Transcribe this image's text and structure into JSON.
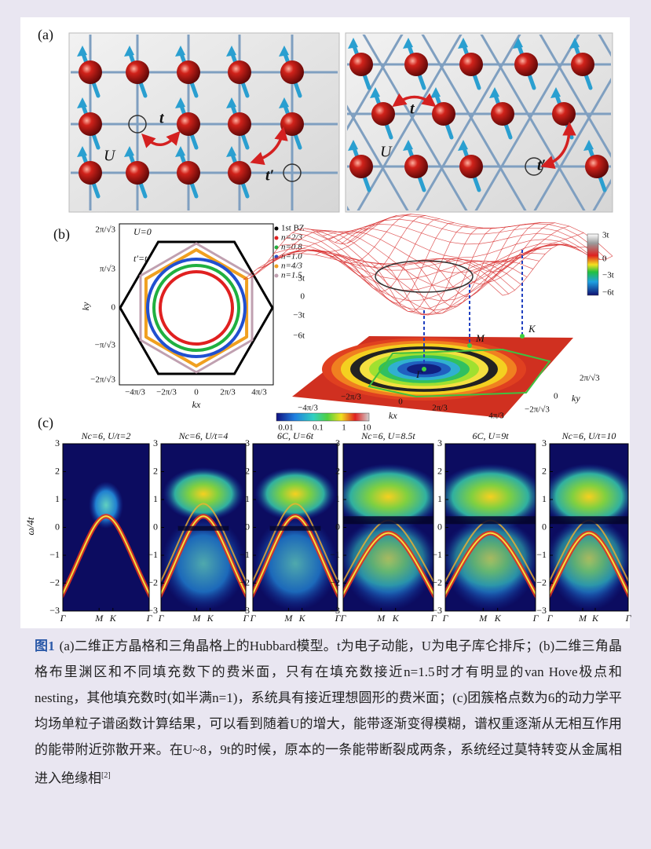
{
  "figure": {
    "panel_a": {
      "label": "(a)",
      "square": {
        "hopping": "t",
        "interaction": "U",
        "next_hopping": "t′"
      },
      "triangular": {
        "hopping": "t",
        "interaction": "U",
        "next_hopping": "t′"
      }
    },
    "panel_b": {
      "label": "(b)",
      "fermi": {
        "notes": [
          "U=0",
          "t′=t"
        ],
        "legend": [
          "1st BZ",
          "n=2/3",
          "n=0.8",
          "n=1.0",
          "n=4/3",
          "n=1.5"
        ],
        "xticks": [
          "−4π/3",
          "−2π/3",
          "0",
          "2π/3",
          "4π/3"
        ],
        "yticks": [
          "2π/√3",
          "π/√3",
          "0",
          "−π/√3",
          "−2π/√3"
        ],
        "xlabel": "kx",
        "ylabel": "ky"
      },
      "dispersion": {
        "zticks": [
          "3t",
          "0",
          "−3t",
          "−6t"
        ],
        "colorbar_ticks": [
          "3t",
          "0",
          "−3t",
          "−6t"
        ],
        "points": [
          "Γ",
          "M",
          "K"
        ],
        "kx_ticks": [
          "−4π/3",
          "−2π/3",
          "0",
          "2π/3",
          "4π/3"
        ],
        "ky_ticks": [
          "2π/√3",
          "0",
          "−2π/√3"
        ],
        "xlabel": "kx",
        "ylabel": "ky"
      }
    },
    "panel_c": {
      "label": "(c)",
      "colorbar_ticks": [
        "0.01",
        "0.1",
        "1",
        "10"
      ],
      "titles": [
        "Nc=6, U/t=2",
        "Nc=6, U/t=4",
        "6C, U=6t",
        "Nc=6, U=8.5t",
        "6C, U=9t",
        "Nc=6, U/t=10"
      ],
      "yticks": [
        "3",
        "2",
        "1",
        "0",
        "−1",
        "−2",
        "−3"
      ],
      "ylabel": "ω/4t",
      "xticks": [
        "Γ",
        "M",
        "K",
        "Γ"
      ]
    }
  },
  "caption": {
    "label": "图1",
    "text": "(a)二维正方晶格和三角晶格上的Hubbard模型。t为电子动能，U为电子库仑排斥；(b)二维三角晶格布里渊区和不同填充数下的费米面，只有在填充数接近n=1.5时才有明显的van Hove极点和nesting，其他填充数时(如半满n=1)，系统具有接近理想圆形的费米面；(c)团簇格点数为6的动力学平均场单粒子谱函数计算结果，可以看到随着U的增大，能带逐渐变得模糊，谱权重逐渐从无相互作用的能带附近弥散开来。在U~8，9t的时候，原本的一条能带断裂成两条，系统经过莫特转变从金属相进入绝缘相",
    "ref": "[2]"
  }
}
